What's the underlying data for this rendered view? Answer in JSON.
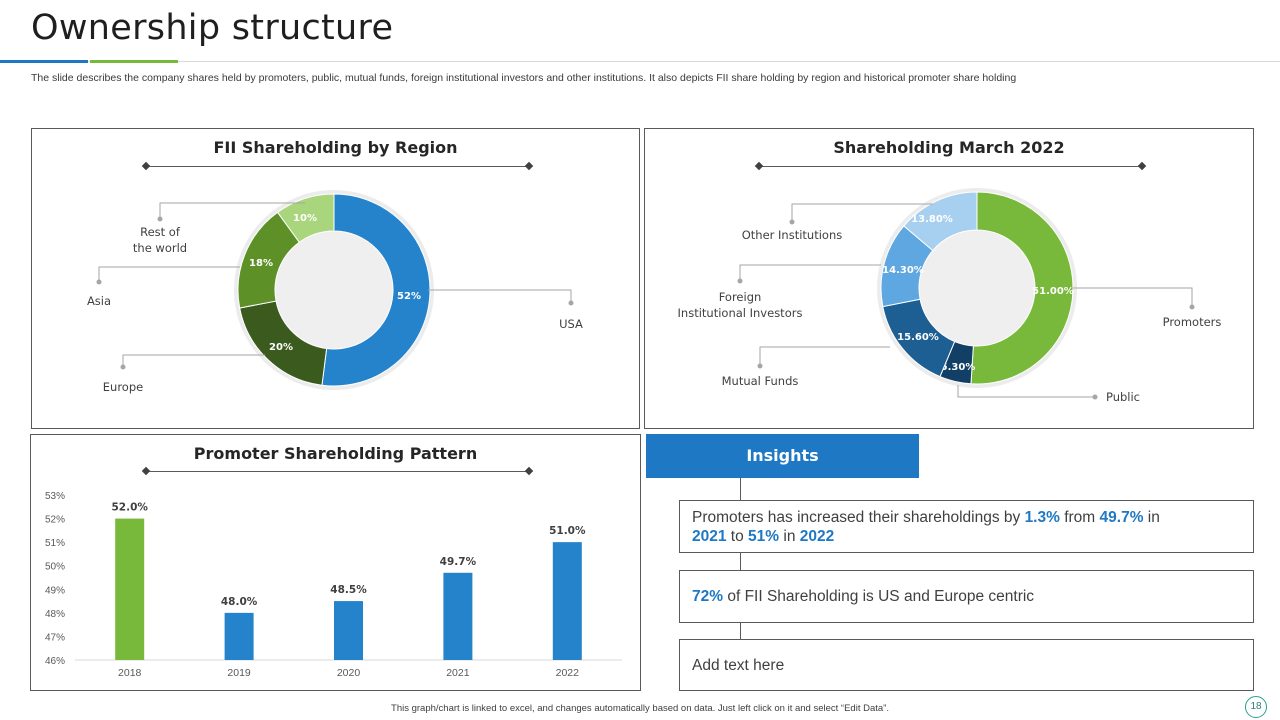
{
  "header": {
    "title": "Ownership structure",
    "subtitle": "The slide describes the company shares held by promoters, public, mutual funds, foreign institutional investors and other institutions. It also depicts FII share holding by region and historical promoter share holding"
  },
  "colors": {
    "accent_blue": "#1f78c4",
    "accent_green": "#78b83a"
  },
  "fii_panel": {
    "title": "FII Shareholding by Region"
  },
  "shareholding_panel": {
    "title": "Shareholding March 2022"
  },
  "promoter_panel": {
    "title": "Promoter Shareholding Pattern"
  },
  "chart_data": [
    {
      "type": "pie",
      "title": "FII Shareholding by Region",
      "slices": [
        {
          "label": "USA",
          "value": 52,
          "display": "52%",
          "color": "#2583cc"
        },
        {
          "label": "Europe",
          "value": 20,
          "display": "20%",
          "color": "#3a5a1e"
        },
        {
          "label": "Asia",
          "value": 18,
          "display": "18%",
          "color": "#5d9128"
        },
        {
          "label": "Rest of\nthe world",
          "value": 10,
          "display": "10%",
          "color": "#a9d67c"
        }
      ]
    },
    {
      "type": "pie",
      "title": "Shareholding March 2022",
      "slices": [
        {
          "label": "Promoters",
          "value": 51.0,
          "display": "51.00%",
          "color": "#78b83a"
        },
        {
          "label": "Public",
          "value": 5.3,
          "display": "5.30%",
          "color": "#123f66"
        },
        {
          "label": "Mutual Funds",
          "value": 15.6,
          "display": "15.60%",
          "color": "#1d5e93"
        },
        {
          "label": "Foreign\nInstitutional Investors",
          "value": 14.3,
          "display": "14.30%",
          "color": "#5ea7e0"
        },
        {
          "label": "Other Institutions",
          "value": 13.8,
          "display": "13.80%",
          "color": "#a7cff0"
        }
      ]
    },
    {
      "type": "bar",
      "title": "Promoter Shareholding Pattern",
      "categories": [
        "2018",
        "2019",
        "2020",
        "2021",
        "2022"
      ],
      "values": [
        52.0,
        48.0,
        48.5,
        49.7,
        51.0
      ],
      "value_labels": [
        "52.0%",
        "48.0%",
        "48.5%",
        "49.7%",
        "51.0%"
      ],
      "colors": [
        "#78b83a",
        "#2583cc",
        "#2583cc",
        "#2583cc",
        "#2583cc"
      ],
      "ylim": [
        46,
        53
      ],
      "yticks": [
        "46%",
        "47%",
        "48%",
        "49%",
        "50%",
        "51%",
        "52%",
        "53%"
      ],
      "xlabel": "",
      "ylabel": ""
    }
  ],
  "insights": {
    "header": "Insights",
    "box1": {
      "p1": "Promoters has increased their shareholdings by ",
      "v1": "1.3%",
      "p2": " from ",
      "v2": "49.7%",
      "p3": " in ",
      "v3": "2021",
      "p4": " to ",
      "v4": "51%",
      "p5": " in ",
      "v5": "2022"
    },
    "box2": {
      "v1": "72%",
      "p1": " of FII Shareholding is US and Europe centric"
    },
    "box3": {
      "text": "Add text here"
    }
  },
  "footer": {
    "note": "This graph/chart is linked to excel, and changes automatically based on data. Just left click on it and select “Edit Data”.",
    "page_number": "18"
  }
}
